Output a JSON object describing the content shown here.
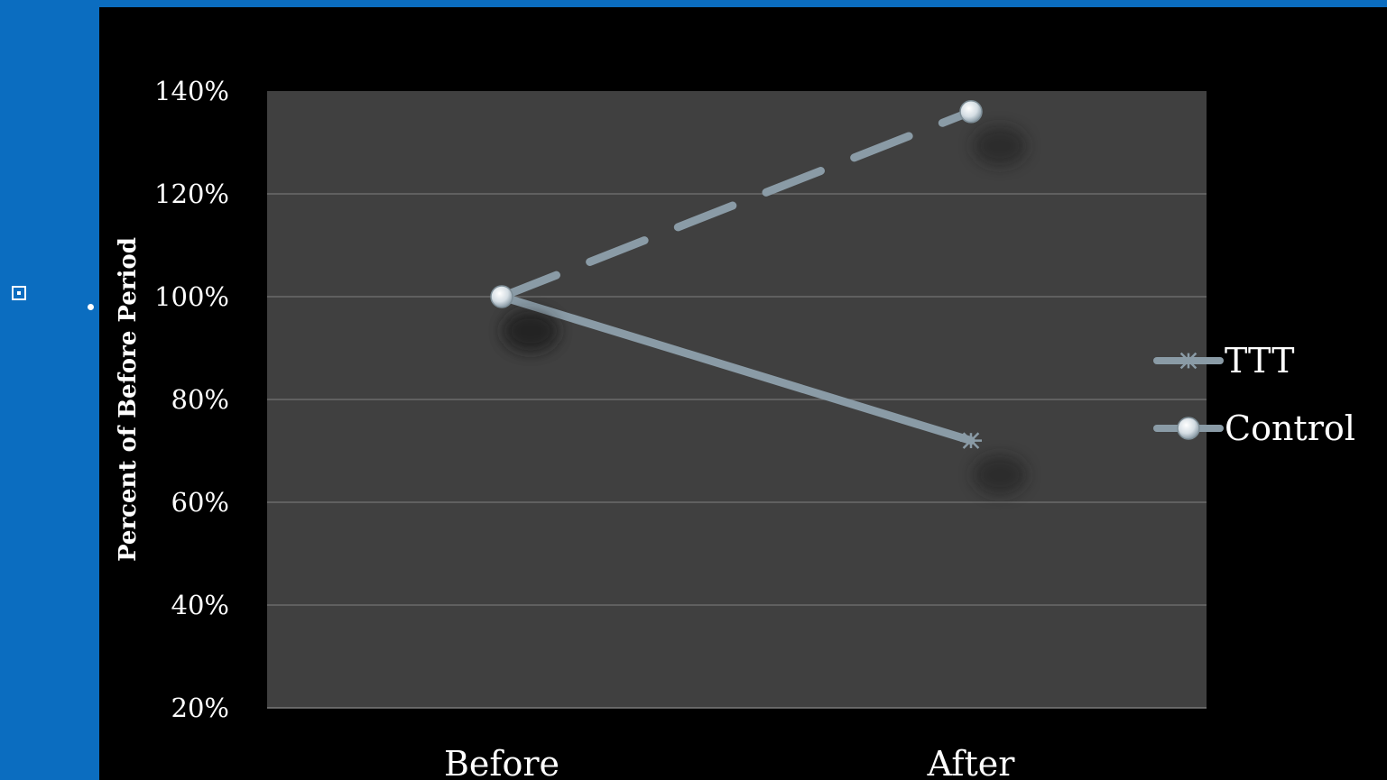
{
  "colors": {
    "background": "#000000",
    "accent_band": "#0b6dc0",
    "plot_area": "#404040",
    "gridline": "#6a6a6a",
    "series_line": "#8a9ba6",
    "text": "#ffffff"
  },
  "chart_data": {
    "type": "line",
    "categories": [
      "Before",
      "After"
    ],
    "series": [
      {
        "name": "TTT",
        "values": [
          100,
          72
        ],
        "line_style": "solid",
        "marker": "asterisk"
      },
      {
        "name": "Control",
        "values": [
          100,
          136
        ],
        "line_style": "dashed",
        "marker": "circle"
      }
    ],
    "ylabel": "Percent of Before Period",
    "y_ticks": [
      "20%",
      "40%",
      "60%",
      "80%",
      "100%",
      "120%",
      "140%"
    ],
    "ylim": [
      20,
      140
    ],
    "grid": true,
    "legend_position": "right"
  }
}
